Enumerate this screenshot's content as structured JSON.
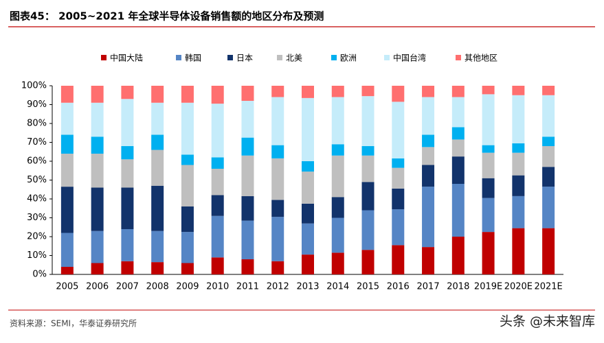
{
  "header": {
    "title": "图表45：  2005~2021 年全球半导体设备销售额的地区分布及预测"
  },
  "chart_data": {
    "type": "stacked_bar",
    "categories": [
      "2005",
      "2006",
      "2007",
      "2008",
      "2009",
      "2010",
      "2011",
      "2012",
      "2013",
      "2014",
      "2015",
      "2016",
      "2017",
      "2018",
      "2019E",
      "2020E",
      "2021E"
    ],
    "series": [
      {
        "name": "中国大陆",
        "color": "#c00000",
        "values": [
          4,
          6,
          7,
          6.5,
          6,
          9,
          8,
          7,
          10.5,
          11.5,
          13,
          15.5,
          14.5,
          20,
          22.5,
          24.5,
          24.5
        ]
      },
      {
        "name": "韩国",
        "color": "#5585c5",
        "values": [
          18,
          17,
          17,
          16.5,
          16.5,
          22,
          20.5,
          23.5,
          16.5,
          18.5,
          21,
          19,
          32,
          28,
          18,
          17,
          22
        ]
      },
      {
        "name": "日本",
        "color": "#12336b",
        "values": [
          24.5,
          23,
          22,
          24,
          13.5,
          11,
          13,
          9,
          10.5,
          11,
          15,
          11,
          11.5,
          14.5,
          10.5,
          11,
          10.5
        ]
      },
      {
        "name": "北美",
        "color": "#bfbfbf",
        "values": [
          17.5,
          18,
          15,
          19,
          22,
          14,
          21.5,
          22,
          17,
          22,
          14,
          11,
          9.5,
          9,
          13.5,
          12,
          11
        ]
      },
      {
        "name": "欧洲",
        "color": "#00b0f0",
        "values": [
          10,
          9,
          7,
          8,
          5.5,
          6,
          9.5,
          7,
          5.5,
          6,
          5,
          5,
          6.5,
          6.5,
          4,
          5,
          5
        ]
      },
      {
        "name": "中国台湾",
        "color": "#c5ecfa",
        "values": [
          17,
          18,
          25,
          17,
          27.5,
          28.5,
          19.5,
          25.5,
          33.5,
          25,
          26.5,
          30,
          20,
          16,
          27,
          25.5,
          22
        ]
      },
      {
        "name": "其他地区",
        "color": "#ff6f6f",
        "values": [
          9,
          9,
          7,
          9,
          9,
          9.5,
          8,
          6,
          6.5,
          6,
          5.5,
          8.5,
          6,
          6,
          4.5,
          5,
          5
        ]
      }
    ],
    "ylim": [
      0,
      100
    ],
    "yticks": [
      {
        "value": 0,
        "label": "0%"
      },
      {
        "value": 10,
        "label": "10%"
      },
      {
        "value": 20,
        "label": "20%"
      },
      {
        "value": 30,
        "label": "30%"
      },
      {
        "value": 40,
        "label": "40%"
      },
      {
        "value": 50,
        "label": "50%"
      },
      {
        "value": 60,
        "label": "60%"
      },
      {
        "value": 70,
        "label": "70%"
      },
      {
        "value": 80,
        "label": "80%"
      },
      {
        "value": 90,
        "label": "90%"
      },
      {
        "value": 100,
        "label": "100%"
      }
    ],
    "legend": "top"
  },
  "footer": {
    "source": "资料来源：SEMI，华泰证券研究所",
    "watermark": "头条 @未来智库"
  }
}
